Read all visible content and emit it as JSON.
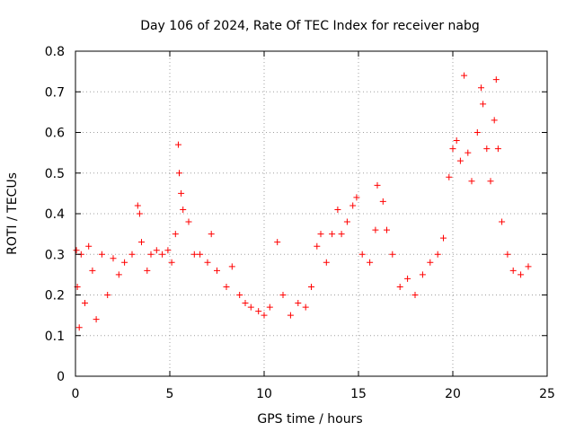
{
  "chart_data": {
    "type": "scatter",
    "title": "Day 106 of 2024, Rate Of TEC Index for receiver nabg",
    "xlabel": "GPS time / hours",
    "ylabel": "ROTI / TECUs",
    "xlim": [
      0,
      25
    ],
    "ylim": [
      0,
      0.8
    ],
    "xticks": [
      "0",
      "5",
      "10",
      "15",
      "20",
      "25"
    ],
    "yticks": [
      "0",
      "0.1",
      "0.2",
      "0.3",
      "0.4",
      "0.5",
      "0.6",
      "0.7",
      "0.8"
    ],
    "grid": true,
    "marker": "plus",
    "color": "#ff0000",
    "series": [
      {
        "points": [
          [
            0.05,
            0.31
          ],
          [
            0.1,
            0.22
          ],
          [
            0.2,
            0.12
          ],
          [
            0.3,
            0.3
          ],
          [
            0.5,
            0.18
          ],
          [
            0.7,
            0.32
          ],
          [
            0.9,
            0.26
          ],
          [
            1.1,
            0.14
          ],
          [
            1.4,
            0.3
          ],
          [
            1.7,
            0.2
          ],
          [
            2.0,
            0.29
          ],
          [
            2.3,
            0.25
          ],
          [
            2.6,
            0.28
          ],
          [
            3.0,
            0.3
          ],
          [
            3.3,
            0.42
          ],
          [
            3.4,
            0.4
          ],
          [
            3.5,
            0.33
          ],
          [
            3.8,
            0.26
          ],
          [
            4.0,
            0.3
          ],
          [
            4.3,
            0.31
          ],
          [
            4.6,
            0.3
          ],
          [
            4.9,
            0.31
          ],
          [
            5.1,
            0.28
          ],
          [
            5.3,
            0.35
          ],
          [
            5.45,
            0.57
          ],
          [
            5.5,
            0.5
          ],
          [
            5.6,
            0.45
          ],
          [
            5.7,
            0.41
          ],
          [
            6.0,
            0.38
          ],
          [
            6.3,
            0.3
          ],
          [
            6.6,
            0.3
          ],
          [
            7.0,
            0.28
          ],
          [
            7.2,
            0.35
          ],
          [
            7.5,
            0.26
          ],
          [
            8.0,
            0.22
          ],
          [
            8.3,
            0.27
          ],
          [
            8.7,
            0.2
          ],
          [
            9.0,
            0.18
          ],
          [
            9.3,
            0.17
          ],
          [
            9.7,
            0.16
          ],
          [
            10.0,
            0.15
          ],
          [
            10.3,
            0.17
          ],
          [
            10.7,
            0.33
          ],
          [
            11.0,
            0.2
          ],
          [
            11.4,
            0.15
          ],
          [
            11.8,
            0.18
          ],
          [
            12.2,
            0.17
          ],
          [
            12.5,
            0.22
          ],
          [
            12.8,
            0.32
          ],
          [
            13.0,
            0.35
          ],
          [
            13.3,
            0.28
          ],
          [
            13.6,
            0.35
          ],
          [
            13.9,
            0.41
          ],
          [
            14.1,
            0.35
          ],
          [
            14.4,
            0.38
          ],
          [
            14.7,
            0.42
          ],
          [
            14.9,
            0.44
          ],
          [
            15.2,
            0.3
          ],
          [
            15.6,
            0.28
          ],
          [
            15.9,
            0.36
          ],
          [
            16.0,
            0.47
          ],
          [
            16.3,
            0.43
          ],
          [
            16.5,
            0.36
          ],
          [
            16.8,
            0.3
          ],
          [
            17.2,
            0.22
          ],
          [
            17.6,
            0.24
          ],
          [
            18.0,
            0.2
          ],
          [
            18.4,
            0.25
          ],
          [
            18.8,
            0.28
          ],
          [
            19.2,
            0.3
          ],
          [
            19.5,
            0.34
          ],
          [
            19.8,
            0.49
          ],
          [
            20.0,
            0.56
          ],
          [
            20.2,
            0.58
          ],
          [
            20.4,
            0.53
          ],
          [
            20.6,
            0.74
          ],
          [
            20.8,
            0.55
          ],
          [
            21.0,
            0.48
          ],
          [
            21.3,
            0.6
          ],
          [
            21.5,
            0.71
          ],
          [
            21.6,
            0.67
          ],
          [
            21.8,
            0.56
          ],
          [
            22.0,
            0.48
          ],
          [
            22.2,
            0.63
          ],
          [
            22.3,
            0.73
          ],
          [
            22.4,
            0.56
          ],
          [
            22.6,
            0.38
          ],
          [
            22.9,
            0.3
          ],
          [
            23.2,
            0.26
          ],
          [
            23.6,
            0.25
          ],
          [
            24.0,
            0.27
          ]
        ]
      }
    ]
  }
}
